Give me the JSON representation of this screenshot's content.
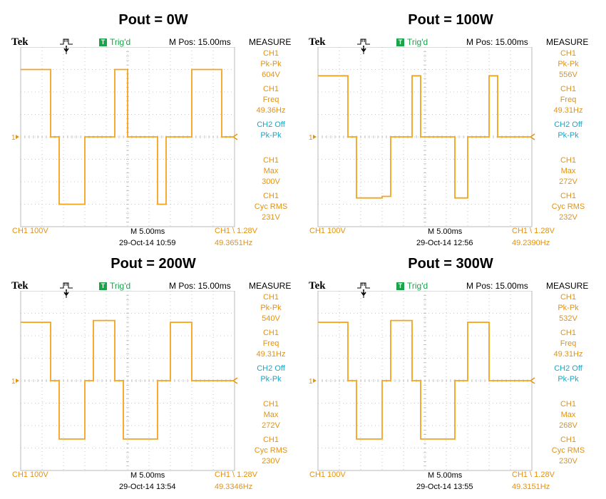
{
  "colors": {
    "trace": "#f3a41c",
    "measure_text": "#e39211",
    "cyan": "#1ba6c6",
    "trig_green": "#19a34a",
    "grid": "#b8b8b8"
  },
  "chart_data": [
    {
      "type": "line",
      "title": "Pout = 0W",
      "header": {
        "brand": "Tek",
        "trig_badge": "T",
        "trig": "Trig'd",
        "mpos": "M Pos: 15.00ms",
        "measure": "MEASURE"
      },
      "measurements": [
        {
          "l1": "CH1",
          "l2": "Pk-Pk",
          "l3": "604V",
          "color": "orange"
        },
        {
          "l1": "CH1",
          "l2": "Freq",
          "l3": "49.36Hz",
          "color": "orange"
        },
        {
          "l1": "CH2 Off",
          "l2": "Pk-Pk",
          "l3": "",
          "color": "cyan"
        },
        {
          "l1": "CH1",
          "l2": "Max",
          "l3": "300V",
          "color": "orange"
        },
        {
          "l1": "CH1",
          "l2": "Cyc RMS",
          "l3": "231V",
          "color": "orange"
        }
      ],
      "footer": {
        "ch1": "CH1  100V",
        "time": "M 5.00ms",
        "trigger": "CH1 \\ 1.28V",
        "date": "29-Oct-14 10:59",
        "freq": "49.3651Hz"
      },
      "ch_marker": "1",
      "x_unit": "ms",
      "y_unit": "V",
      "xlim": [
        0,
        50
      ],
      "ylim": [
        -400,
        400
      ],
      "x": [
        0,
        7,
        7,
        9,
        9,
        15,
        15,
        22,
        22,
        25,
        25,
        32,
        32,
        34,
        34,
        40,
        40,
        47,
        47,
        50
      ],
      "y": [
        300,
        300,
        0,
        0,
        -300,
        -300,
        0,
        0,
        300,
        300,
        0,
        0,
        -300,
        -300,
        0,
        0,
        300,
        300,
        0,
        0
      ]
    },
    {
      "type": "line",
      "title": "Pout = 100W",
      "header": {
        "brand": "Tek",
        "trig_badge": "T",
        "trig": "Trig'd",
        "mpos": "M Pos: 15.00ms",
        "measure": "MEASURE"
      },
      "measurements": [
        {
          "l1": "CH1",
          "l2": "Pk-Pk",
          "l3": "556V",
          "color": "orange"
        },
        {
          "l1": "CH1",
          "l2": "Freq",
          "l3": "49.31Hz",
          "color": "orange"
        },
        {
          "l1": "CH2 Off",
          "l2": "Pk-Pk",
          "l3": "",
          "color": "cyan"
        },
        {
          "l1": "CH1",
          "l2": "Max",
          "l3": "272V",
          "color": "orange"
        },
        {
          "l1": "CH1",
          "l2": "Cyc RMS",
          "l3": "232V",
          "color": "orange"
        }
      ],
      "footer": {
        "ch1": "CH1  100V",
        "time": "M 5.00ms",
        "trigger": "CH1 \\ 1.28V",
        "date": "29-Oct-14 12:56",
        "freq": "49.2390Hz"
      },
      "ch_marker": "1",
      "x_unit": "ms",
      "y_unit": "V",
      "xlim": [
        0,
        50
      ],
      "ylim": [
        -400,
        400
      ],
      "x": [
        0,
        7,
        7,
        9,
        9,
        15,
        15,
        17,
        17,
        22,
        22,
        24,
        24,
        32,
        32,
        35,
        35,
        40,
        40,
        42,
        42,
        47,
        47,
        50
      ],
      "y": [
        272,
        272,
        0,
        0,
        -272,
        -272,
        -265,
        -265,
        0,
        0,
        272,
        272,
        0,
        0,
        -272,
        -272,
        0,
        0,
        272,
        272,
        0,
        0,
        0,
        0
      ]
    },
    {
      "type": "line",
      "title": "Pout = 200W",
      "header": {
        "brand": "Tek",
        "trig_badge": "T",
        "trig": "Trig'd",
        "mpos": "M Pos: 15.00ms",
        "measure": "MEASURE"
      },
      "measurements": [
        {
          "l1": "CH1",
          "l2": "Pk-Pk",
          "l3": "540V",
          "color": "orange"
        },
        {
          "l1": "CH1",
          "l2": "Freq",
          "l3": "49.31Hz",
          "color": "orange"
        },
        {
          "l1": "CH2 Off",
          "l2": "Pk-Pk",
          "l3": "",
          "color": "cyan"
        },
        {
          "l1": "CH1",
          "l2": "Max",
          "l3": "272V",
          "color": "orange"
        },
        {
          "l1": "CH1",
          "l2": "Cyc RMS",
          "l3": "230V",
          "color": "orange"
        }
      ],
      "footer": {
        "ch1": "CH1  100V",
        "time": "M 5.00ms",
        "trigger": "CH1 \\ 1.28V",
        "date": "29-Oct-14 13:54",
        "freq": "49.3346Hz"
      },
      "ch_marker": "1",
      "x_unit": "ms",
      "y_unit": "V",
      "xlim": [
        0,
        50
      ],
      "ylim": [
        -400,
        400
      ],
      "x": [
        0,
        7,
        7,
        9,
        9,
        15,
        15,
        17,
        17,
        22,
        22,
        24,
        24,
        32,
        32,
        35,
        35,
        40,
        40,
        42,
        42,
        47,
        47,
        50
      ],
      "y": [
        260,
        260,
        0,
        0,
        -260,
        -260,
        0,
        0,
        268,
        268,
        0,
        0,
        -260,
        -260,
        0,
        0,
        260,
        260,
        0,
        0,
        0,
        0,
        0,
        0
      ]
    },
    {
      "type": "line",
      "title": "Pout = 300W",
      "header": {
        "brand": "Tek",
        "trig_badge": "T",
        "trig": "Trig'd",
        "mpos": "M Pos: 15.00ms",
        "measure": "MEASURE"
      },
      "measurements": [
        {
          "l1": "CH1",
          "l2": "Pk-Pk",
          "l3": "532V",
          "color": "orange"
        },
        {
          "l1": "CH1",
          "l2": "Freq",
          "l3": "49.31Hz",
          "color": "orange"
        },
        {
          "l1": "CH2 Off",
          "l2": "Pk-Pk",
          "l3": "",
          "color": "cyan"
        },
        {
          "l1": "CH1",
          "l2": "Max",
          "l3": "268V",
          "color": "orange"
        },
        {
          "l1": "CH1",
          "l2": "Cyc RMS",
          "l3": "230V",
          "color": "orange"
        }
      ],
      "footer": {
        "ch1": "CH1  100V",
        "time": "M 5.00ms",
        "trigger": "CH1 \\ 1.28V",
        "date": "29-Oct-14 13:55",
        "freq": "49.3151Hz"
      },
      "ch_marker": "1",
      "x_unit": "ms",
      "y_unit": "V",
      "xlim": [
        0,
        50
      ],
      "ylim": [
        -400,
        400
      ],
      "x": [
        0,
        7,
        7,
        9,
        9,
        15,
        15,
        17,
        17,
        22,
        22,
        24,
        24,
        32,
        32,
        35,
        35,
        40,
        40,
        42,
        42,
        47,
        47,
        50
      ],
      "y": [
        260,
        260,
        0,
        0,
        -260,
        -260,
        0,
        0,
        268,
        268,
        0,
        0,
        -260,
        -260,
        0,
        0,
        260,
        260,
        0,
        0,
        0,
        0,
        0,
        0
      ]
    }
  ]
}
